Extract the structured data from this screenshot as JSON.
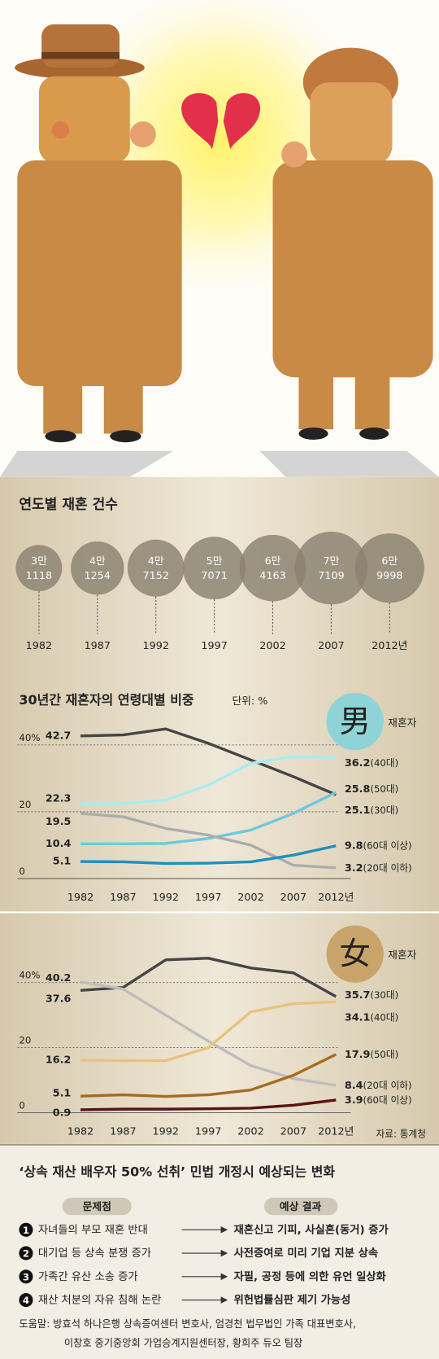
{
  "chart_data": [
    {
      "type": "bubble",
      "title": "연도별 재혼 건수",
      "categories": [
        "1982",
        "1987",
        "1992",
        "1997",
        "2002",
        "2007",
        "2012년"
      ],
      "values": [
        31118,
        41254,
        47152,
        57071,
        64163,
        77109,
        69998
      ],
      "value_labels": [
        [
          "3만",
          "1118"
        ],
        [
          "4만",
          "1254"
        ],
        [
          "4만",
          "7152"
        ],
        [
          "5만",
          "7071"
        ],
        [
          "6만",
          "4163"
        ],
        [
          "7만",
          "7109"
        ],
        [
          "6만",
          "9998"
        ]
      ],
      "color": "#8a8170"
    },
    {
      "type": "line",
      "title": "30년간 재혼자의 연령대별 비중",
      "unit": "단위: %",
      "symbol": "男",
      "symbol_color": "#8ed3d5",
      "symbol_label": "재혼자",
      "categories": [
        "1982",
        "1987",
        "1992",
        "1997",
        "2002",
        "2007",
        "2012년"
      ],
      "ylim": [
        0,
        47
      ],
      "yticks": [
        {
          "value": 40,
          "label": "40%"
        },
        20,
        0
      ],
      "series": [
        {
          "name": "(30대)",
          "color": "#454545",
          "values": [
            42.7,
            43,
            44.8,
            40.5,
            35.5,
            30.5,
            25.1
          ]
        },
        {
          "name": "(40대)",
          "color": "#a8ecf2",
          "values": [
            22.3,
            22.5,
            23.5,
            28,
            34.5,
            36.5,
            36.2
          ]
        },
        {
          "name": "(50대)",
          "color": "#6ccadd",
          "values": [
            10.4,
            10.4,
            10.5,
            12,
            14.5,
            19.5,
            25.8
          ]
        },
        {
          "name": "(20대 이하)",
          "color": "#acacac",
          "values": [
            19.5,
            18.5,
            15,
            13,
            10,
            4,
            3.2
          ]
        },
        {
          "name": "(60대 이상)",
          "color": "#1f8fc0",
          "values": [
            5.1,
            5,
            4.5,
            4.6,
            5,
            7,
            9.8
          ]
        }
      ]
    },
    {
      "type": "line",
      "symbol": "女",
      "symbol_color": "#c9a46a",
      "symbol_label": "재혼자",
      "categories": [
        "1982",
        "1987",
        "1992",
        "1997",
        "2002",
        "2007",
        "2012년"
      ],
      "ylim": [
        0,
        50
      ],
      "yticks": [
        {
          "value": 40,
          "label": "40%"
        },
        20,
        0
      ],
      "source": "자료: 통계청",
      "series": [
        {
          "name": "(30대)",
          "color": "#454545",
          "values": [
            37.6,
            38.5,
            47,
            47.5,
            44.5,
            43,
            35.7
          ]
        },
        {
          "name": "(20대 이하)",
          "color": "#bdbdbd",
          "values": [
            40.2,
            38,
            30,
            22,
            14.5,
            10.5,
            8.4
          ]
        },
        {
          "name": "(40대)",
          "color": "#e8c27e",
          "values": [
            16.2,
            16,
            16,
            20,
            31,
            33.5,
            34.1
          ]
        },
        {
          "name": "(50대)",
          "color": "#a86a22",
          "values": [
            5.1,
            5.5,
            5,
            5.5,
            7,
            11.5,
            17.9
          ]
        },
        {
          "name": "(60대 이상)",
          "color": "#5a1414",
          "values": [
            0.9,
            1.1,
            1.1,
            1.2,
            1.4,
            2.3,
            3.9
          ]
        }
      ]
    }
  ],
  "table": {
    "title": "‘상속 재산 배우자 50% 선취’ 민법 개정시 예상되는 변화",
    "headers": [
      "문제점",
      "예상 결과"
    ],
    "rows": [
      {
        "number": 1,
        "problem": "자녀들의 부모 재혼 반대",
        "result": "재혼신고 기피, 사실혼(동거) 증가"
      },
      {
        "number": 2,
        "problem": "대기업 등 상속 분쟁 증가",
        "result": "사전증여로 미리 기업 지분 상속"
      },
      {
        "number": 3,
        "problem": "가족간 유산 소송 증가",
        "result": "자필, 공정 등에 의한  유언 일상화"
      },
      {
        "number": 4,
        "problem": "재산 처분의 자유 침해 논란",
        "result": "위헌법률심판 제기 가능성"
      }
    ]
  },
  "footer": [
    "도움말: 방효석 하나은행 상속증여센터 변호사, 엄경천 법무법인 가족 대표변호사,",
    "이창호 중기중앙회 가업승계지원센터장, 황희주 듀오 팀장"
  ]
}
